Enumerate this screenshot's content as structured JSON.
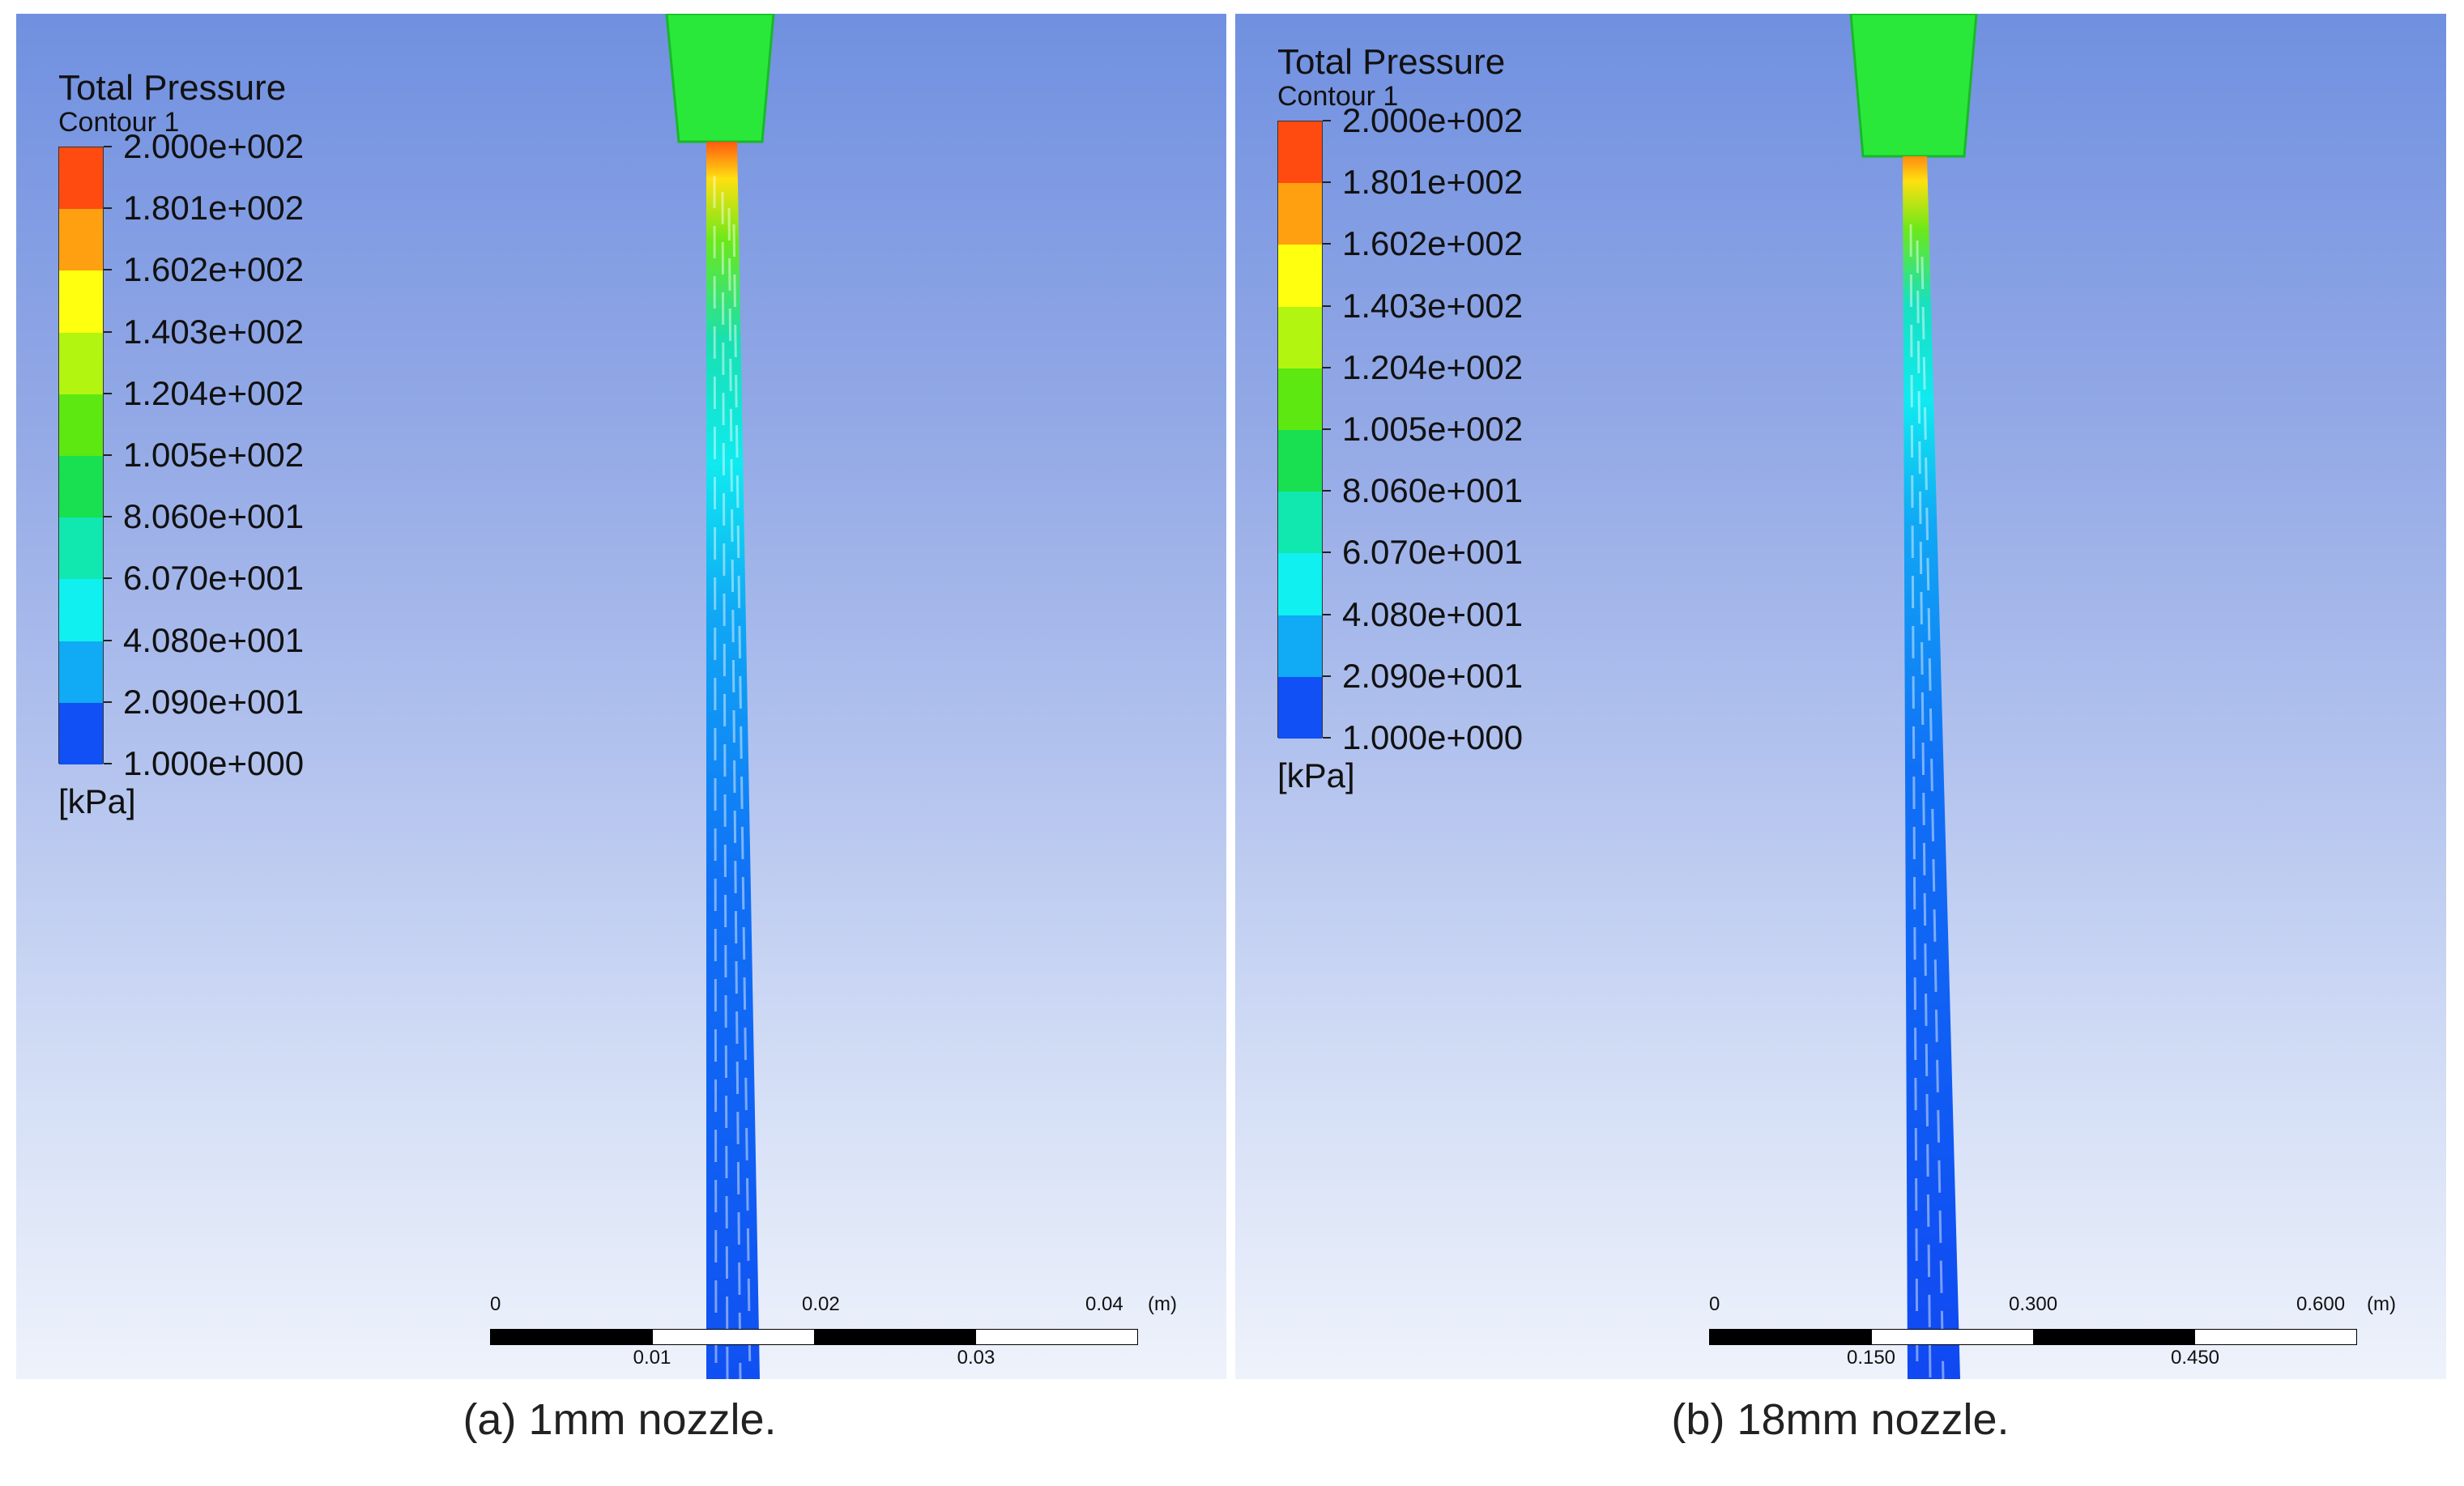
{
  "colors": {
    "legend_bands_top_to_bottom": [
      "#ff4b10",
      "#ffa010",
      "#ffff10",
      "#b2f510",
      "#5ce810",
      "#18e050",
      "#10e8b0",
      "#10f0f0",
      "#10aaf5",
      "#1050f5"
    ],
    "nozzle": "#2ae83a",
    "background_top": "#7090e0",
    "background_bottom": "#eef2fb"
  },
  "legend": {
    "title": "Total Pressure",
    "subtitle": "Contour 1",
    "unit": "[kPa]",
    "levels": [
      "2.000e+002",
      "1.801e+002",
      "1.602e+002",
      "1.403e+002",
      "1.204e+002",
      "1.005e+002",
      "8.060e+001",
      "6.070e+001",
      "4.080e+001",
      "2.090e+001",
      "1.000e+000"
    ]
  },
  "panels": [
    {
      "id": "a",
      "scale": {
        "top_labels": [
          "0",
          "0.02",
          "0.04"
        ],
        "bottom_labels": [
          "0.01",
          "0.03"
        ],
        "unit": "(m)"
      },
      "caption": "(a) 1mm nozzle."
    },
    {
      "id": "b",
      "scale": {
        "top_labels": [
          "0",
          "0.300",
          "0.600"
        ],
        "bottom_labels": [
          "0.150",
          "0.450"
        ],
        "unit": "(m)"
      },
      "caption": "(b) 18mm nozzle."
    }
  ]
}
